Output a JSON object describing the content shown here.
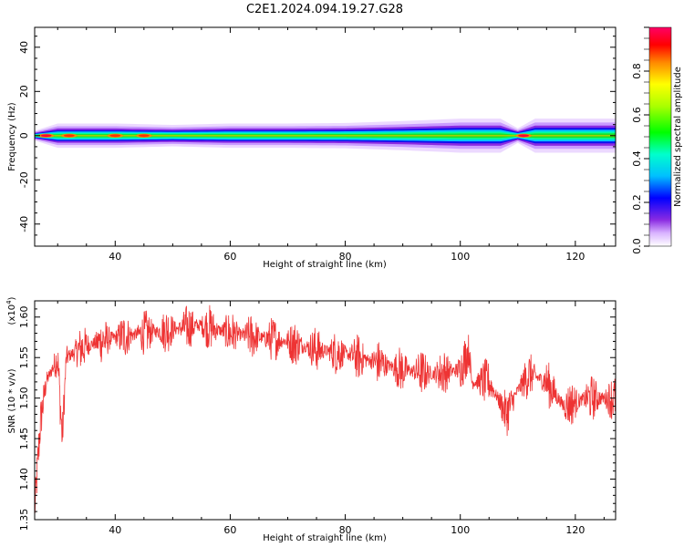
{
  "title": "C2E1.2024.094.19.27.G28",
  "chart_data": [
    {
      "type": "heatmap",
      "xlabel": "Height of straight line (km)",
      "ylabel": "Frequency (Hz)",
      "xlim": [
        26,
        127
      ],
      "ylim": [
        -50,
        49
      ],
      "x_ticks": [
        40,
        60,
        80,
        100,
        120
      ],
      "y_ticks": [
        -40,
        -20,
        0,
        20,
        40
      ],
      "colorbar": {
        "label": "Normalized spectral amplitude",
        "range": [
          0,
          1
        ],
        "ticks": [
          0.0,
          0.2,
          0.4,
          0.6,
          0.8
        ],
        "tick_labels": [
          "0.0",
          "0.2",
          "0.4",
          "0.6",
          "0.8"
        ]
      },
      "band": {
        "center_hz": 0,
        "profile": [
          {
            "x": 26,
            "halfwidth_hz": 1.0
          },
          {
            "x": 30,
            "halfwidth_hz": 2.5
          },
          {
            "x": 40,
            "halfwidth_hz": 2.5
          },
          {
            "x": 50,
            "halfwidth_hz": 2.2
          },
          {
            "x": 60,
            "halfwidth_hz": 2.5
          },
          {
            "x": 70,
            "halfwidth_hz": 2.5
          },
          {
            "x": 80,
            "halfwidth_hz": 2.6
          },
          {
            "x": 90,
            "halfwidth_hz": 3.0
          },
          {
            "x": 100,
            "halfwidth_hz": 3.5
          },
          {
            "x": 107,
            "halfwidth_hz": 3.5
          },
          {
            "x": 110,
            "halfwidth_hz": 1.5
          },
          {
            "x": 113,
            "halfwidth_hz": 3.5
          },
          {
            "x": 120,
            "halfwidth_hz": 3.5
          },
          {
            "x": 127,
            "halfwidth_hz": 3.5
          }
        ],
        "hotspots": [
          {
            "x": 28,
            "amplitude": 0.95
          },
          {
            "x": 32,
            "amplitude": 0.8
          },
          {
            "x": 40,
            "amplitude": 0.75
          },
          {
            "x": 45,
            "amplitude": 0.7
          },
          {
            "x": 111,
            "amplitude": 0.95
          }
        ]
      }
    },
    {
      "type": "line",
      "xlabel": "Height of straight line (km)",
      "ylabel": "SNR (10 * v/v)",
      "y_multiplier": "(x10",
      "y_multiplier_exp": "4",
      "y_multiplier_close": ")",
      "xlim": [
        26,
        127
      ],
      "ylim": [
        1.35,
        1.62
      ],
      "x_ticks": [
        40,
        60,
        80,
        100,
        120
      ],
      "y_ticks": [
        1.35,
        1.4,
        1.45,
        1.5,
        1.55,
        1.6
      ],
      "y_tick_labels": [
        "1.35",
        "1.40",
        "1.45",
        "1.50",
        "1.55",
        "1.60"
      ],
      "series": [
        {
          "color": "#ee3333",
          "trend": [
            {
              "x": 26,
              "y": 1.36
            },
            {
              "x": 27,
              "y": 1.47
            },
            {
              "x": 28,
              "y": 1.52
            },
            {
              "x": 30,
              "y": 1.55
            },
            {
              "x": 30.8,
              "y": 1.45
            },
            {
              "x": 31.5,
              "y": 1.55
            },
            {
              "x": 35,
              "y": 1.565
            },
            {
              "x": 40,
              "y": 1.575
            },
            {
              "x": 45,
              "y": 1.58
            },
            {
              "x": 50,
              "y": 1.585
            },
            {
              "x": 55,
              "y": 1.59
            },
            {
              "x": 60,
              "y": 1.58
            },
            {
              "x": 65,
              "y": 1.575
            },
            {
              "x": 70,
              "y": 1.57
            },
            {
              "x": 75,
              "y": 1.56
            },
            {
              "x": 80,
              "y": 1.555
            },
            {
              "x": 85,
              "y": 1.545
            },
            {
              "x": 90,
              "y": 1.535
            },
            {
              "x": 95,
              "y": 1.53
            },
            {
              "x": 100,
              "y": 1.535
            },
            {
              "x": 101.5,
              "y": 1.56
            },
            {
              "x": 102,
              "y": 1.52
            },
            {
              "x": 105,
              "y": 1.52
            },
            {
              "x": 108,
              "y": 1.48
            },
            {
              "x": 110,
              "y": 1.51
            },
            {
              "x": 112,
              "y": 1.53
            },
            {
              "x": 115,
              "y": 1.52
            },
            {
              "x": 118,
              "y": 1.49
            },
            {
              "x": 122,
              "y": 1.5
            },
            {
              "x": 127,
              "y": 1.5
            }
          ],
          "noise_amplitude": 0.018
        }
      ]
    }
  ]
}
